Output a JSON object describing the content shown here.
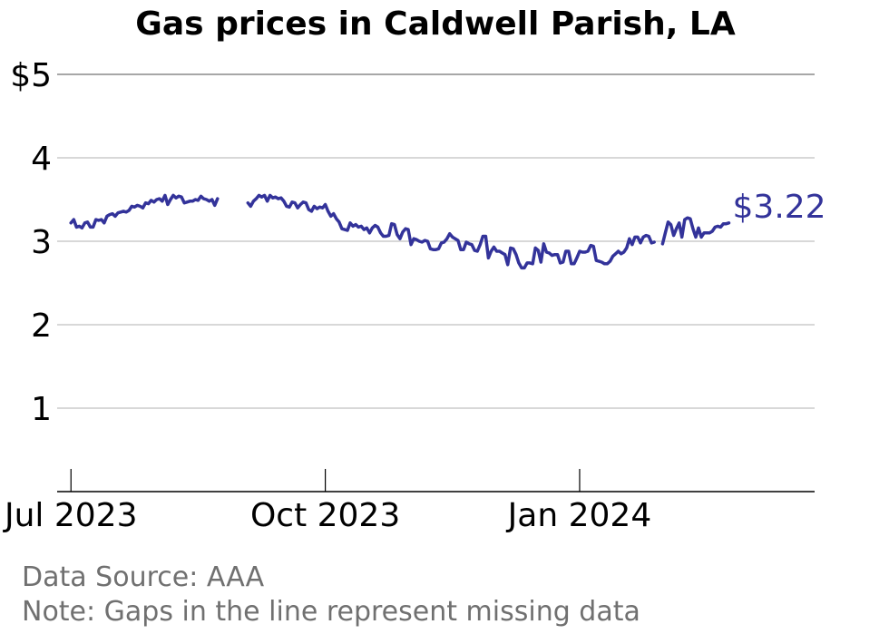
{
  "title": "Gas prices in Caldwell Parish, LA",
  "source_note": "Data Source: AAA",
  "gap_note": "Note: Gaps in the line represent missing data",
  "end_label": "$3.22",
  "colors": {
    "line": "#33339a",
    "grid": "#b0b0b0",
    "axis": "#000000",
    "note": "#707070"
  },
  "chart_data": {
    "type": "line",
    "title": "Gas prices in Caldwell Parish, LA",
    "xlabel": "",
    "ylabel": "",
    "ylim": [
      0,
      5
    ],
    "xlim": [
      "2023-06-26",
      "2024-03-26"
    ],
    "y_ticks": [
      {
        "value": 5,
        "label": "$5"
      },
      {
        "value": 4,
        "label": "4"
      },
      {
        "value": 3,
        "label": "3"
      },
      {
        "value": 2,
        "label": "2"
      },
      {
        "value": 1,
        "label": "1"
      }
    ],
    "x_ticks": [
      {
        "date": "2023-07-01",
        "label": "Jul 2023"
      },
      {
        "date": "2023-10-01",
        "label": "Oct 2023"
      },
      {
        "date": "2024-01-01",
        "label": "Jan 2024"
      }
    ],
    "grid": "horizontal",
    "series": [
      {
        "segments": [
          [
            [
              "2023-07-01",
              3.22
            ],
            [
              "2023-07-02",
              3.26
            ],
            [
              "2023-07-03",
              3.17
            ],
            [
              "2023-07-04",
              3.18
            ],
            [
              "2023-07-05",
              3.16
            ],
            [
              "2023-07-06",
              3.22
            ],
            [
              "2023-07-07",
              3.23
            ],
            [
              "2023-07-08",
              3.17
            ],
            [
              "2023-07-09",
              3.17
            ],
            [
              "2023-07-10",
              3.26
            ],
            [
              "2023-07-11",
              3.25
            ],
            [
              "2023-07-12",
              3.26
            ],
            [
              "2023-07-13",
              3.22
            ],
            [
              "2023-07-14",
              3.3
            ],
            [
              "2023-07-15",
              3.32
            ],
            [
              "2023-07-16",
              3.33
            ],
            [
              "2023-07-17",
              3.3
            ],
            [
              "2023-07-18",
              3.34
            ],
            [
              "2023-07-19",
              3.35
            ],
            [
              "2023-07-20",
              3.36
            ],
            [
              "2023-07-21",
              3.35
            ],
            [
              "2023-07-22",
              3.37
            ],
            [
              "2023-07-23",
              3.42
            ],
            [
              "2023-07-24",
              3.41
            ],
            [
              "2023-07-25",
              3.43
            ],
            [
              "2023-07-26",
              3.42
            ],
            [
              "2023-07-27",
              3.4
            ],
            [
              "2023-07-28",
              3.46
            ],
            [
              "2023-07-29",
              3.45
            ],
            [
              "2023-07-30",
              3.49
            ],
            [
              "2023-07-31",
              3.47
            ],
            [
              "2023-08-01",
              3.5
            ],
            [
              "2023-08-02",
              3.51
            ],
            [
              "2023-08-03",
              3.48
            ],
            [
              "2023-08-04",
              3.55
            ],
            [
              "2023-08-05",
              3.44
            ],
            [
              "2023-08-06",
              3.5
            ],
            [
              "2023-08-07",
              3.55
            ],
            [
              "2023-08-08",
              3.52
            ],
            [
              "2023-08-09",
              3.54
            ],
            [
              "2023-08-10",
              3.53
            ],
            [
              "2023-08-11",
              3.46
            ],
            [
              "2023-08-12",
              3.47
            ],
            [
              "2023-08-13",
              3.48
            ],
            [
              "2023-08-14",
              3.48
            ],
            [
              "2023-08-15",
              3.5
            ],
            [
              "2023-08-16",
              3.49
            ],
            [
              "2023-08-17",
              3.54
            ],
            [
              "2023-08-18",
              3.51
            ],
            [
              "2023-08-19",
              3.5
            ],
            [
              "2023-08-20",
              3.48
            ],
            [
              "2023-08-21",
              3.5
            ],
            [
              "2023-08-22",
              3.43
            ],
            [
              "2023-08-23",
              3.51
            ]
          ],
          [
            [
              "2023-09-03",
              3.46
            ],
            [
              "2023-09-04",
              3.42
            ],
            [
              "2023-09-05",
              3.48
            ],
            [
              "2023-09-06",
              3.51
            ],
            [
              "2023-09-07",
              3.55
            ],
            [
              "2023-09-08",
              3.53
            ],
            [
              "2023-09-09",
              3.55
            ],
            [
              "2023-09-10",
              3.48
            ],
            [
              "2023-09-11",
              3.55
            ],
            [
              "2023-09-12",
              3.52
            ],
            [
              "2023-09-13",
              3.53
            ],
            [
              "2023-09-14",
              3.51
            ],
            [
              "2023-09-15",
              3.52
            ],
            [
              "2023-09-16",
              3.48
            ],
            [
              "2023-09-17",
              3.42
            ],
            [
              "2023-09-18",
              3.41
            ],
            [
              "2023-09-19",
              3.47
            ],
            [
              "2023-09-20",
              3.46
            ],
            [
              "2023-09-21",
              3.4
            ],
            [
              "2023-09-22",
              3.44
            ],
            [
              "2023-09-23",
              3.47
            ],
            [
              "2023-09-24",
              3.46
            ],
            [
              "2023-09-25",
              3.38
            ],
            [
              "2023-09-26",
              3.36
            ],
            [
              "2023-09-27",
              3.42
            ],
            [
              "2023-09-28",
              3.39
            ],
            [
              "2023-09-29",
              3.41
            ],
            [
              "2023-09-30",
              3.4
            ],
            [
              "2023-10-01",
              3.44
            ],
            [
              "2023-10-02",
              3.36
            ],
            [
              "2023-10-03",
              3.3
            ],
            [
              "2023-10-04",
              3.33
            ],
            [
              "2023-10-05",
              3.27
            ],
            [
              "2023-10-06",
              3.23
            ],
            [
              "2023-10-07",
              3.15
            ],
            [
              "2023-10-08",
              3.14
            ],
            [
              "2023-10-09",
              3.13
            ],
            [
              "2023-10-10",
              3.22
            ],
            [
              "2023-10-11",
              3.18
            ],
            [
              "2023-10-12",
              3.2
            ],
            [
              "2023-10-13",
              3.17
            ],
            [
              "2023-10-14",
              3.18
            ],
            [
              "2023-10-15",
              3.14
            ],
            [
              "2023-10-16",
              3.16
            ],
            [
              "2023-10-17",
              3.1
            ],
            [
              "2023-10-18",
              3.16
            ],
            [
              "2023-10-19",
              3.19
            ],
            [
              "2023-10-20",
              3.17
            ],
            [
              "2023-10-21",
              3.1
            ],
            [
              "2023-10-22",
              3.06
            ],
            [
              "2023-10-23",
              3.06
            ],
            [
              "2023-10-24",
              3.07
            ],
            [
              "2023-10-25",
              3.21
            ],
            [
              "2023-10-26",
              3.2
            ],
            [
              "2023-10-27",
              3.08
            ],
            [
              "2023-10-28",
              3.03
            ],
            [
              "2023-10-29",
              3.11
            ],
            [
              "2023-10-30",
              3.15
            ],
            [
              "2023-10-31",
              3.14
            ],
            [
              "2023-11-01",
              2.96
            ],
            [
              "2023-11-02",
              3.03
            ],
            [
              "2023-11-03",
              3.02
            ],
            [
              "2023-11-04",
              3.0
            ],
            [
              "2023-11-05",
              2.99
            ],
            [
              "2023-11-06",
              3.01
            ],
            [
              "2023-11-07",
              3.0
            ],
            [
              "2023-11-08",
              2.91
            ],
            [
              "2023-11-09",
              2.9
            ],
            [
              "2023-11-10",
              2.9
            ],
            [
              "2023-11-11",
              2.91
            ],
            [
              "2023-11-12",
              2.98
            ],
            [
              "2023-11-13",
              2.99
            ],
            [
              "2023-11-14",
              3.03
            ],
            [
              "2023-11-15",
              3.09
            ],
            [
              "2023-11-16",
              3.05
            ],
            [
              "2023-11-17",
              3.03
            ],
            [
              "2023-11-18",
              3.01
            ],
            [
              "2023-11-19",
              2.9
            ],
            [
              "2023-11-20",
              2.9
            ],
            [
              "2023-11-21",
              2.99
            ],
            [
              "2023-11-22",
              2.97
            ],
            [
              "2023-11-23",
              2.96
            ],
            [
              "2023-11-24",
              2.89
            ],
            [
              "2023-11-25",
              2.88
            ],
            [
              "2023-11-26",
              2.96
            ],
            [
              "2023-11-27",
              3.06
            ],
            [
              "2023-11-28",
              3.06
            ],
            [
              "2023-11-29",
              2.8
            ],
            [
              "2023-11-30",
              2.88
            ],
            [
              "2023-12-01",
              2.93
            ],
            [
              "2023-12-02",
              2.88
            ],
            [
              "2023-12-03",
              2.88
            ],
            [
              "2023-12-04",
              2.86
            ],
            [
              "2023-12-05",
              2.84
            ],
            [
              "2023-12-06",
              2.72
            ],
            [
              "2023-12-07",
              2.92
            ],
            [
              "2023-12-08",
              2.91
            ],
            [
              "2023-12-09",
              2.84
            ],
            [
              "2023-12-10",
              2.74
            ],
            [
              "2023-12-11",
              2.68
            ],
            [
              "2023-12-12",
              2.68
            ],
            [
              "2023-12-13",
              2.74
            ],
            [
              "2023-12-14",
              2.74
            ],
            [
              "2023-12-15",
              2.73
            ],
            [
              "2023-12-16",
              2.92
            ],
            [
              "2023-12-17",
              2.89
            ],
            [
              "2023-12-18",
              2.75
            ],
            [
              "2023-12-19",
              2.97
            ],
            [
              "2023-12-20",
              2.87
            ],
            [
              "2023-12-21",
              2.86
            ],
            [
              "2023-12-22",
              2.83
            ],
            [
              "2023-12-23",
              2.84
            ],
            [
              "2023-12-24",
              2.84
            ],
            [
              "2023-12-25",
              2.74
            ],
            [
              "2023-12-26",
              2.75
            ],
            [
              "2023-12-27",
              2.88
            ],
            [
              "2023-12-28",
              2.88
            ],
            [
              "2023-12-29",
              2.73
            ],
            [
              "2023-12-30",
              2.73
            ],
            [
              "2023-12-31",
              2.8
            ],
            [
              "2024-01-01",
              2.88
            ],
            [
              "2024-01-02",
              2.87
            ],
            [
              "2024-01-03",
              2.87
            ],
            [
              "2024-01-04",
              2.88
            ],
            [
              "2024-01-05",
              2.95
            ],
            [
              "2024-01-06",
              2.94
            ],
            [
              "2024-01-07",
              2.77
            ],
            [
              "2024-01-08",
              2.76
            ],
            [
              "2024-01-09",
              2.75
            ],
            [
              "2024-01-10",
              2.73
            ],
            [
              "2024-01-11",
              2.73
            ],
            [
              "2024-01-12",
              2.76
            ],
            [
              "2024-01-13",
              2.82
            ],
            [
              "2024-01-14",
              2.85
            ],
            [
              "2024-01-15",
              2.88
            ],
            [
              "2024-01-16",
              2.85
            ],
            [
              "2024-01-17",
              2.87
            ],
            [
              "2024-01-18",
              2.92
            ],
            [
              "2024-01-19",
              3.03
            ],
            [
              "2024-01-20",
              2.96
            ],
            [
              "2024-01-21",
              3.05
            ],
            [
              "2024-01-22",
              3.05
            ],
            [
              "2024-01-23",
              2.98
            ],
            [
              "2024-01-24",
              3.05
            ],
            [
              "2024-01-25",
              3.07
            ],
            [
              "2024-01-26",
              3.06
            ],
            [
              "2024-01-27",
              2.98
            ],
            [
              "2024-01-28",
              2.99
            ]
          ],
          [
            [
              "2024-01-31",
              2.97
            ],
            [
              "2024-02-01",
              3.1
            ],
            [
              "2024-02-02",
              3.23
            ],
            [
              "2024-02-03",
              3.2
            ],
            [
              "2024-02-04",
              3.07
            ],
            [
              "2024-02-05",
              3.15
            ],
            [
              "2024-02-06",
              3.22
            ],
            [
              "2024-02-07",
              3.05
            ],
            [
              "2024-02-08",
              3.26
            ],
            [
              "2024-02-09",
              3.28
            ],
            [
              "2024-02-10",
              3.27
            ],
            [
              "2024-02-11",
              3.15
            ],
            [
              "2024-02-12",
              3.05
            ],
            [
              "2024-02-13",
              3.16
            ],
            [
              "2024-02-14",
              3.05
            ],
            [
              "2024-02-15",
              3.1
            ],
            [
              "2024-02-16",
              3.1
            ],
            [
              "2024-02-17",
              3.1
            ],
            [
              "2024-02-18",
              3.12
            ],
            [
              "2024-02-19",
              3.17
            ],
            [
              "2024-02-20",
              3.18
            ],
            [
              "2024-02-21",
              3.17
            ],
            [
              "2024-02-22",
              3.21
            ],
            [
              "2024-02-23",
              3.21
            ],
            [
              "2024-02-24",
              3.22
            ]
          ]
        ]
      }
    ]
  }
}
